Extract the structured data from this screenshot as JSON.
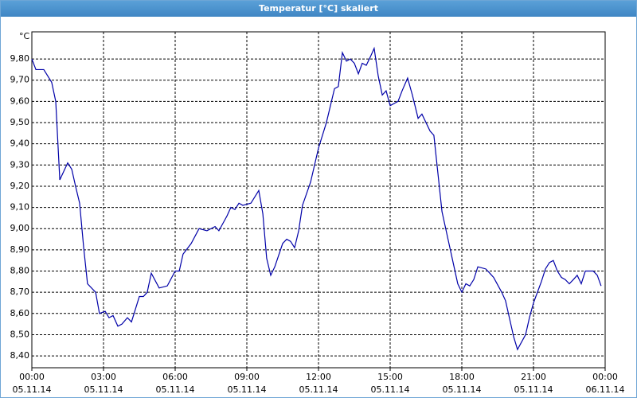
{
  "chart_data": {
    "type": "line",
    "title": "Temperatur [°C] skaliert",
    "y_label": "°C",
    "x": [
      0.0,
      0.17,
      0.5,
      0.83,
      1.0,
      1.17,
      1.5,
      1.67,
      1.83,
      2.0,
      2.17,
      2.33,
      2.67,
      2.83,
      3.07,
      3.23,
      3.4,
      3.6,
      3.77,
      4.0,
      4.17,
      4.5,
      4.67,
      4.83,
      5.0,
      5.33,
      5.67,
      6.0,
      6.17,
      6.33,
      6.67,
      7.0,
      7.33,
      7.67,
      7.83,
      8.17,
      8.33,
      8.5,
      8.67,
      8.83,
      9.17,
      9.5,
      9.67,
      9.83,
      10.0,
      10.17,
      10.5,
      10.67,
      10.83,
      11.0,
      11.17,
      11.33,
      11.67,
      12.0,
      12.33,
      12.67,
      12.83,
      13.0,
      13.17,
      13.33,
      13.5,
      13.67,
      13.83,
      14.0,
      14.17,
      14.33,
      14.5,
      14.67,
      14.83,
      15.0,
      15.33,
      15.5,
      15.73,
      15.93,
      16.17,
      16.33,
      16.67,
      16.83,
      17.17,
      17.5,
      17.83,
      18.0,
      18.17,
      18.33,
      18.5,
      18.67,
      19.0,
      19.17,
      19.33,
      19.67,
      19.83,
      20.17,
      20.33,
      20.67,
      20.83,
      21.0,
      21.33,
      21.5,
      21.67,
      21.83,
      22.0,
      22.17,
      22.33,
      22.5,
      22.67,
      22.83,
      23.0,
      23.17,
      23.5,
      23.67,
      23.83
    ],
    "series": [
      {
        "name": "Temperatur",
        "color": "#0000a8",
        "values": [
          9.8,
          9.75,
          9.75,
          9.69,
          9.6,
          9.23,
          9.31,
          9.28,
          9.2,
          9.12,
          8.91,
          8.74,
          8.7,
          8.6,
          8.61,
          8.58,
          8.59,
          8.54,
          8.55,
          8.58,
          8.56,
          8.68,
          8.68,
          8.7,
          8.79,
          8.72,
          8.73,
          8.8,
          8.8,
          8.88,
          8.93,
          9.0,
          8.99,
          9.01,
          8.99,
          9.06,
          9.1,
          9.09,
          9.12,
          9.11,
          9.12,
          9.18,
          9.07,
          8.86,
          8.78,
          8.82,
          8.93,
          8.95,
          8.94,
          8.91,
          8.99,
          9.11,
          9.22,
          9.38,
          9.5,
          9.66,
          9.67,
          9.83,
          9.79,
          9.8,
          9.78,
          9.73,
          9.78,
          9.77,
          9.81,
          9.85,
          9.72,
          9.63,
          9.65,
          9.58,
          9.6,
          9.65,
          9.71,
          9.63,
          9.52,
          9.54,
          9.46,
          9.44,
          9.08,
          8.91,
          8.74,
          8.7,
          8.74,
          8.73,
          8.76,
          8.82,
          8.81,
          8.79,
          8.77,
          8.7,
          8.66,
          8.49,
          8.43,
          8.5,
          8.58,
          8.65,
          8.75,
          8.81,
          8.84,
          8.85,
          8.8,
          8.77,
          8.76,
          8.74,
          8.76,
          8.78,
          8.74,
          8.8,
          8.8,
          8.78,
          8.73
        ]
      }
    ],
    "xlim": [
      0,
      24
    ],
    "xticks": [
      {
        "value": 0,
        "label": "00:00\n05.11.14"
      },
      {
        "value": 3,
        "label": "03:00\n05.11.14"
      },
      {
        "value": 6,
        "label": "06:00\n05.11.14"
      },
      {
        "value": 9,
        "label": "09:00\n05.11.14"
      },
      {
        "value": 12,
        "label": "12:00\n05.11.14"
      },
      {
        "value": 15,
        "label": "15:00\n05.11.14"
      },
      {
        "value": 18,
        "label": "18:00\n05.11.14"
      },
      {
        "value": 21,
        "label": "21:00\n05.11.14"
      },
      {
        "value": 24,
        "label": "00:00\n06.11.14"
      }
    ],
    "ylim": [
      8.344,
      9.928
    ],
    "yticks": [
      {
        "value": 8.4,
        "label": "8,40"
      },
      {
        "value": 8.5,
        "label": "8,50"
      },
      {
        "value": 8.6,
        "label": "8,60"
      },
      {
        "value": 8.7,
        "label": "8,70"
      },
      {
        "value": 8.8,
        "label": "8,80"
      },
      {
        "value": 8.9,
        "label": "8,90"
      },
      {
        "value": 9.0,
        "label": "9,00"
      },
      {
        "value": 9.1,
        "label": "9,10"
      },
      {
        "value": 9.2,
        "label": "9,20"
      },
      {
        "value": 9.3,
        "label": "9,30"
      },
      {
        "value": 9.4,
        "label": "9,40"
      },
      {
        "value": 9.5,
        "label": "9,50"
      },
      {
        "value": 9.6,
        "label": "9,60"
      },
      {
        "value": 9.7,
        "label": "9,70"
      },
      {
        "value": 9.8,
        "label": "9,80"
      }
    ],
    "grid": true
  }
}
